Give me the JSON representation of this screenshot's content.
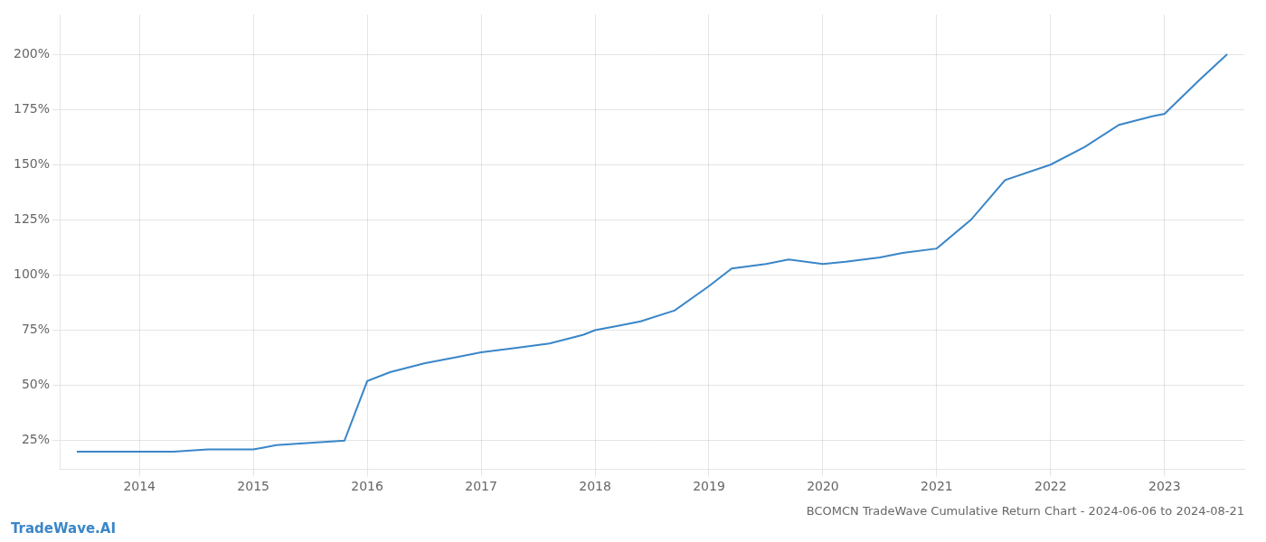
{
  "chart_data": {
    "type": "line",
    "title": "BCOMCN TradeWave Cumulative Return Chart - 2024-06-06 to 2024-08-21",
    "annotations": [
      "TradeWave.AI"
    ],
    "color": "#3a86c8",
    "x": [
      2013.45,
      2013.7,
      2014.0,
      2014.3,
      2014.6,
      2014.9,
      2015.0,
      2015.1,
      2015.2,
      2015.5,
      2015.8,
      2016.0,
      2016.2,
      2016.5,
      2016.8,
      2017.0,
      2017.3,
      2017.6,
      2017.9,
      2018.0,
      2018.2,
      2018.4,
      2018.7,
      2019.0,
      2019.2,
      2019.5,
      2019.7,
      2020.0,
      2020.2,
      2020.5,
      2020.7,
      2021.0,
      2021.3,
      2021.6,
      2022.0,
      2022.3,
      2022.6,
      2022.9,
      2023.0,
      2023.3,
      2023.55
    ],
    "values": [
      20,
      20,
      20,
      20,
      21,
      21,
      21,
      22,
      23,
      24,
      25,
      52,
      56,
      60,
      63,
      65,
      67,
      69,
      73,
      75,
      77,
      79,
      84,
      95,
      103,
      105,
      107,
      105,
      106,
      108,
      110,
      112,
      125,
      143,
      150,
      158,
      168,
      172,
      173,
      188,
      200
    ],
    "xlim": [
      2013.3,
      2023.7
    ],
    "xticks": [
      2014,
      2015,
      2016,
      2017,
      2018,
      2019,
      2020,
      2021,
      2022,
      2023
    ],
    "ylim": [
      12,
      218
    ],
    "yticks": [
      {
        "value": 25,
        "label": "25%"
      },
      {
        "value": 50,
        "label": "50%"
      },
      {
        "value": 75,
        "label": "75%"
      },
      {
        "value": 100,
        "label": "100%"
      },
      {
        "value": 125,
        "label": "125%"
      },
      {
        "value": 150,
        "label": "150%"
      },
      {
        "value": 175,
        "label": "175%"
      },
      {
        "value": 200,
        "label": "200%"
      }
    ],
    "grid": true
  }
}
